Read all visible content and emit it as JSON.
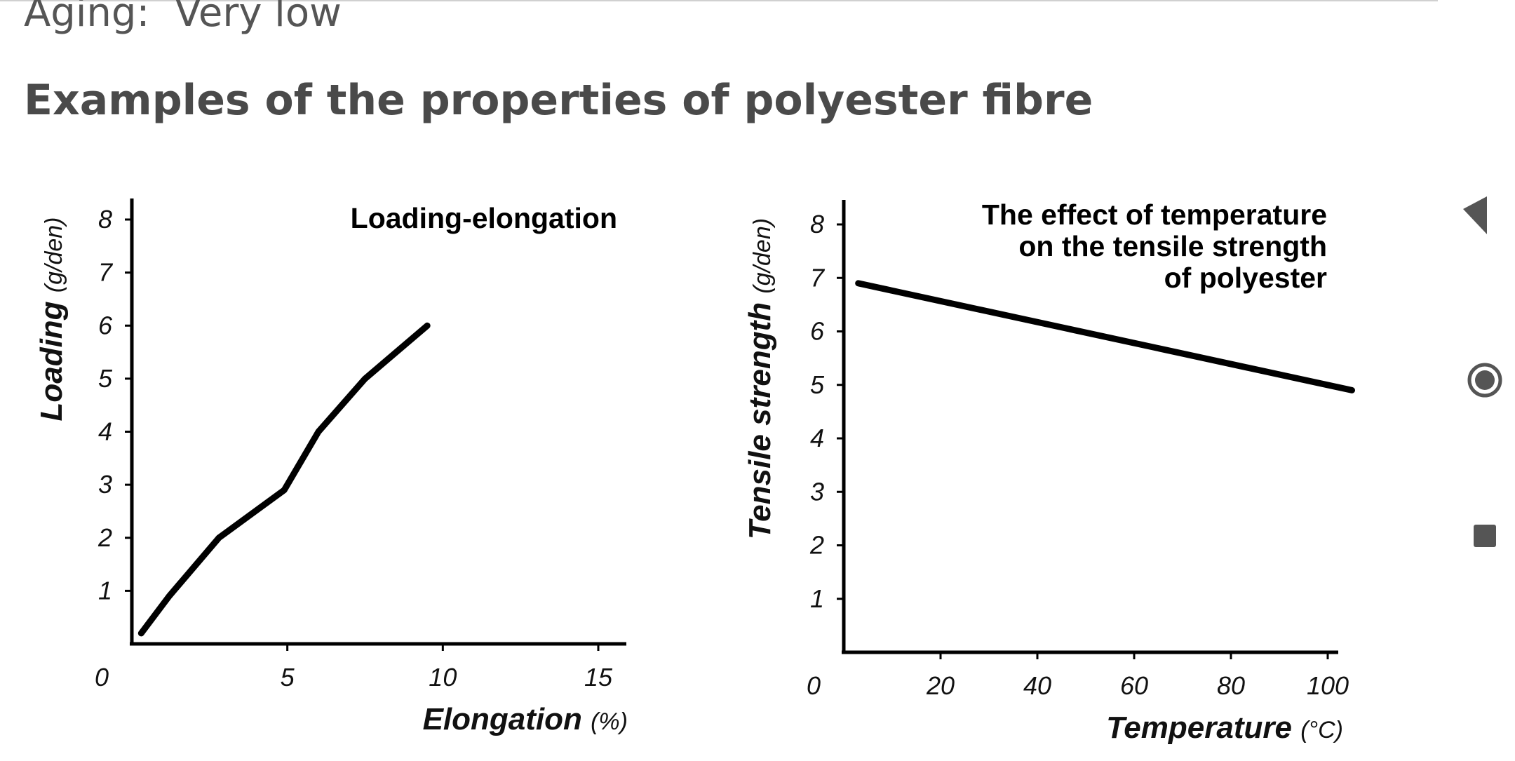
{
  "page": {
    "aging_line": "Aging:  Very low",
    "heading": "Examples of the properties of polyester fibre"
  },
  "nav": {
    "back_icon": "back-triangle-icon",
    "home_icon": "home-circle-icon",
    "recents_icon": "recents-square-icon",
    "icon_color": "#555555"
  },
  "chart_data": [
    {
      "type": "line",
      "title": "Loading-elongation",
      "title_lines": [
        "Loading-elongation"
      ],
      "xlabel": "Elongation",
      "xunit": "(%)",
      "ylabel": "Loading",
      "yunit": "(g/den)",
      "xlim": [
        0,
        16
      ],
      "ylim": [
        0,
        8.5
      ],
      "x_ticks": [
        5,
        10,
        15
      ],
      "y_ticks": [
        1,
        2,
        3,
        4,
        5,
        6,
        7,
        8
      ],
      "origin_label": "0",
      "grid": false,
      "series": [
        {
          "x": [
            0.3,
            1.2,
            2.8,
            4.9,
            5.0,
            6.0,
            7.5,
            9.5
          ],
          "y": [
            0.2,
            0.9,
            2.0,
            2.9,
            3.0,
            4.0,
            5.0,
            6.0
          ]
        }
      ]
    },
    {
      "type": "line",
      "title": "The effect of temperature on the tensile strength of polyester",
      "title_lines": [
        "The effect of temperature",
        "on the tensile strength",
        "of polyester"
      ],
      "xlabel": "Temperature",
      "xunit": "(°C)",
      "ylabel": "Tensile strength",
      "yunit": "(g/den)",
      "xlim": [
        0,
        110
      ],
      "ylim": [
        0,
        8.5
      ],
      "x_ticks": [
        20,
        40,
        60,
        80,
        100
      ],
      "y_ticks": [
        1,
        2,
        3,
        4,
        5,
        6,
        7,
        8
      ],
      "origin_label": "0",
      "grid": false,
      "series": [
        {
          "x": [
            3,
            105
          ],
          "y": [
            6.9,
            4.9
          ]
        }
      ]
    }
  ]
}
